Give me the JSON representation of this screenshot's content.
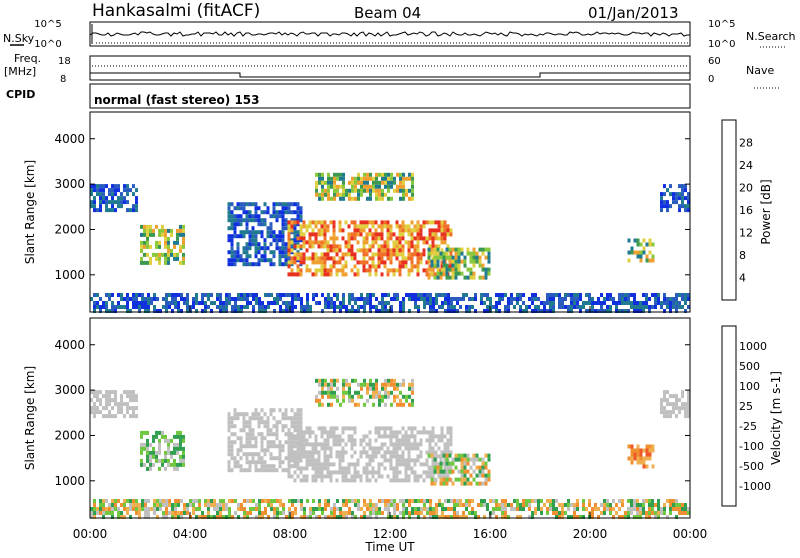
{
  "header": {
    "station": "Hankasalmi (fitACF)",
    "beam": "Beam 04",
    "date": "01/Jan/2013"
  },
  "strip_panel": {
    "left_labels": {
      "nsky": "N.Sky",
      "freq": "Freq.",
      "freq_unit": "[MHz]",
      "cpid": "CPID"
    },
    "right_labels": {
      "nsearch": "N.Search",
      "nave": "Nave"
    },
    "noise_ticks_left": [
      "10^5",
      "10^0"
    ],
    "noise_ticks_right": [
      "10^5",
      "10^0"
    ],
    "freq_ticks": [
      "18",
      "8"
    ],
    "nave_ticks": [
      "60",
      "0"
    ],
    "cpid_text": "normal (fast stereo) 153"
  },
  "axes": {
    "ylabel": "Slant Range [km]",
    "xlabel": "Time UT",
    "yticks": [
      "4000",
      "3000",
      "2000",
      "1000"
    ],
    "xticks": [
      "00:00",
      "04:00",
      "08:00",
      "12:00",
      "16:00",
      "20:00",
      "00:00"
    ]
  },
  "chart_data": [
    {
      "type": "heatmap",
      "panel": "power",
      "xlabel": "Time UT",
      "ylabel": "Slant Range [km]",
      "xlim_hours": [
        0,
        24
      ],
      "ylim_km": [
        180,
        4590
      ],
      "colorbar": {
        "label": "Power [dB]",
        "ticks": [
          "28",
          "24",
          "20",
          "16",
          "12",
          "8",
          "4"
        ],
        "colors": [
          "#1030e0",
          "#2a5cc0",
          "#207a90",
          "#3c9a50",
          "#8ac83c",
          "#e0d040",
          "#f0a030",
          "#f07028",
          "#e83020"
        ]
      },
      "regions": [
        {
          "t": [
            0.0,
            1.9
          ],
          "r": [
            2400,
            3000
          ],
          "level": "low"
        },
        {
          "t": [
            2.0,
            3.8
          ],
          "r": [
            1300,
            2100
          ],
          "level": "medium"
        },
        {
          "t": [
            5.5,
            8.5
          ],
          "r": [
            1200,
            2600
          ],
          "level": "low"
        },
        {
          "t": [
            7.9,
            14.5
          ],
          "r": [
            1000,
            2200
          ],
          "level": "high"
        },
        {
          "t": [
            9.0,
            12.9
          ],
          "r": [
            2700,
            3250
          ],
          "level": "medium"
        },
        {
          "t": [
            13.5,
            16.0
          ],
          "r": [
            900,
            1600
          ],
          "level": "medium"
        },
        {
          "t": [
            21.5,
            22.5
          ],
          "r": [
            1350,
            1800
          ],
          "level": "medium"
        },
        {
          "t": [
            22.8,
            24.0
          ],
          "r": [
            2400,
            3000
          ],
          "level": "low"
        },
        {
          "t": [
            0.0,
            24.0
          ],
          "r": [
            180,
            600
          ],
          "level": "low"
        }
      ]
    },
    {
      "type": "heatmap",
      "panel": "velocity",
      "xlabel": "Time UT",
      "ylabel": "Slant Range [km]",
      "xlim_hours": [
        0,
        24
      ],
      "ylim_km": [
        180,
        4590
      ],
      "colorbar": {
        "label": "Velocity [m s-1]",
        "ticks": [
          "1000",
          "500",
          "100",
          "25",
          "-25",
          "-100",
          "-500",
          "-1000"
        ],
        "colors": [
          "#2040c0",
          "#3080a0",
          "#30a050",
          "#70c840",
          "#c0c0c0",
          "#f0b050",
          "#f09030",
          "#f05828",
          "#e01818"
        ]
      },
      "regions": [
        {
          "t": [
            0.0,
            1.9
          ],
          "r": [
            2400,
            3000
          ],
          "level": "ground"
        },
        {
          "t": [
            2.0,
            3.8
          ],
          "r": [
            1300,
            2100
          ],
          "level": "toward"
        },
        {
          "t": [
            5.5,
            8.5
          ],
          "r": [
            1200,
            2600
          ],
          "level": "ground"
        },
        {
          "t": [
            7.9,
            14.5
          ],
          "r": [
            1000,
            2200
          ],
          "level": "ground"
        },
        {
          "t": [
            9.0,
            12.9
          ],
          "r": [
            2700,
            3250
          ],
          "level": "mixed"
        },
        {
          "t": [
            13.5,
            16.0
          ],
          "r": [
            900,
            1600
          ],
          "level": "mixed"
        },
        {
          "t": [
            21.5,
            22.5
          ],
          "r": [
            1350,
            1800
          ],
          "level": "away"
        },
        {
          "t": [
            22.8,
            24.0
          ],
          "r": [
            2400,
            3000
          ],
          "level": "ground"
        },
        {
          "t": [
            0.0,
            24.0
          ],
          "r": [
            180,
            600
          ],
          "level": "mixed"
        }
      ]
    }
  ]
}
